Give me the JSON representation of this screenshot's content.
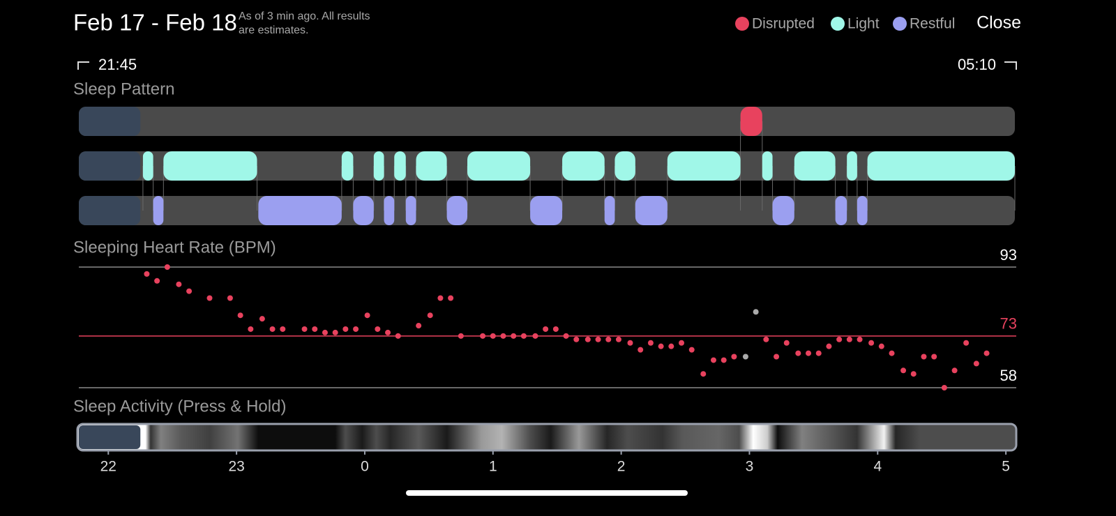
{
  "header": {
    "title": "Feb 17 - Feb 18",
    "note_lines": [
      "As of 3 min ago. All results",
      "are estimates."
    ],
    "close": "Close"
  },
  "legend": [
    {
      "name": "Disrupted",
      "color": "#e8425e",
      "intervals": [
        [
          26.93,
          27.1
        ]
      ]
    },
    {
      "name": "Light",
      "color": "#a0f7e8",
      "intervals": [
        [
          22.27,
          22.35
        ],
        [
          22.43,
          23.16
        ],
        [
          23.82,
          23.91
        ],
        [
          24.07,
          24.15
        ],
        [
          24.23,
          24.32
        ],
        [
          24.4,
          24.64
        ],
        [
          24.8,
          25.29
        ],
        [
          25.54,
          25.87
        ],
        [
          25.95,
          26.11
        ],
        [
          26.36,
          26.93
        ],
        [
          27.1,
          27.18
        ],
        [
          27.35,
          27.67
        ],
        [
          27.76,
          27.84
        ],
        [
          27.92,
          29.07
        ]
      ]
    },
    {
      "name": "Restful",
      "color": "#9b9ff0",
      "intervals": [
        [
          22.35,
          22.43
        ],
        [
          23.17,
          23.82
        ],
        [
          23.91,
          24.07
        ],
        [
          24.15,
          24.23
        ],
        [
          24.32,
          24.4
        ],
        [
          24.64,
          24.8
        ],
        [
          25.29,
          25.54
        ],
        [
          25.87,
          25.95
        ],
        [
          26.11,
          26.36
        ],
        [
          27.18,
          27.35
        ],
        [
          27.67,
          27.76
        ],
        [
          27.84,
          27.92
        ]
      ]
    }
  ],
  "time_range": {
    "start": "21:45",
    "end": "05:10"
  },
  "xlim": [
    21.77,
    29.07
  ],
  "xticks": [
    22,
    23,
    {
      "value": 24,
      "label": "0"
    },
    {
      "value": 25,
      "label": "1"
    },
    {
      "value": 26,
      "label": "2"
    },
    {
      "value": 27,
      "label": "3"
    },
    {
      "value": 28,
      "label": "4"
    },
    {
      "value": 29,
      "label": "5"
    }
  ],
  "sleep_pattern": {
    "title": "Sleep Pattern",
    "pre_sleep_end": 22.25
  },
  "heart_rate": {
    "title": "Sleeping Heart Rate (BPM)",
    "ylim": [
      58,
      93
    ],
    "yticks": [
      58,
      93
    ],
    "average": 73,
    "color": "#e8425e",
    "x": [
      22.3,
      22.38,
      22.46,
      22.55,
      22.63,
      22.79,
      22.95,
      23.03,
      23.11,
      23.2,
      23.28,
      23.36,
      23.53,
      23.61,
      23.69,
      23.77,
      23.85,
      23.93,
      24.02,
      24.1,
      24.18,
      24.26,
      24.42,
      24.51,
      24.59,
      24.67,
      24.75,
      24.92,
      25.0,
      25.08,
      25.16,
      25.24,
      25.33,
      25.41,
      25.49,
      25.57,
      25.65,
      25.74,
      25.82,
      25.9,
      25.98,
      26.07,
      26.15,
      26.23,
      26.31,
      26.39,
      26.47,
      26.55,
      26.64,
      26.72,
      26.8,
      26.88,
      27.13,
      27.21,
      27.29,
      27.38,
      27.46,
      27.54,
      27.62,
      27.7,
      27.78,
      27.86,
      27.95,
      28.03,
      28.11,
      28.2,
      28.28,
      28.36,
      28.44,
      28.52,
      28.6,
      28.69,
      28.77,
      28.85
    ],
    "values": [
      91,
      89,
      93,
      88,
      86,
      84,
      84,
      79,
      75,
      78,
      75,
      75,
      75,
      75,
      74,
      74,
      75,
      75,
      79,
      75,
      74,
      73,
      76,
      79,
      84,
      84,
      73,
      73,
      73,
      73,
      73,
      73,
      73,
      75,
      75,
      73,
      72,
      72,
      72,
      72,
      72,
      71,
      69,
      71,
      70,
      70,
      71,
      69,
      62,
      66,
      66,
      67,
      72,
      67,
      71,
      68,
      68,
      68,
      70,
      72,
      72,
      72,
      71,
      70,
      68,
      63,
      62,
      67,
      67,
      58,
      63,
      71,
      65,
      68
    ],
    "excluded": {
      "color": "#aaaaaa",
      "x": [
        26.97,
        27.05
      ],
      "values": [
        67,
        80
      ]
    }
  },
  "activity": {
    "title": "Sleep Activity (Press & Hold)",
    "x": [
      22.29,
      22.33,
      22.41,
      22.57,
      22.79,
      23.01,
      23.17,
      23.77,
      23.85,
      23.98,
      24.09,
      24.2,
      24.42,
      24.64,
      24.91,
      25.07,
      25.29,
      25.45,
      25.67,
      25.89,
      26.05,
      26.32,
      26.48,
      26.76,
      26.92,
      27.03,
      27.14,
      27.22,
      27.41,
      27.63,
      27.84,
      28.05,
      28.14,
      28.33,
      29.04
    ],
    "values": [
      1.0,
      0.2,
      0.5,
      0.35,
      0.25,
      0.45,
      0.05,
      0.05,
      0.3,
      0.1,
      0.3,
      0.15,
      0.35,
      0.1,
      0.6,
      0.7,
      0.3,
      0.1,
      0.6,
      0.15,
      0.3,
      0.2,
      0.35,
      0.4,
      0.3,
      1.0,
      0.8,
      0.05,
      0.5,
      0.35,
      0.2,
      0.95,
      0.15,
      0.3,
      0.3
    ]
  }
}
